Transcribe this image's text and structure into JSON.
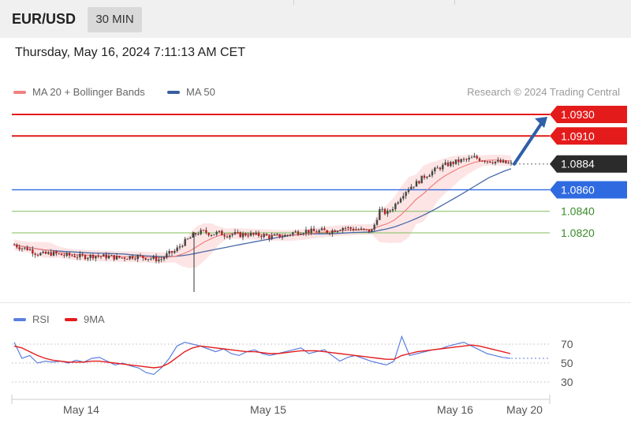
{
  "header": {
    "symbol": "EUR/USD",
    "timeframe": "30 MIN",
    "datetime": "Thursday, May 16, 2024 7:11:13 AM CET",
    "copyright": "Research © 2024 Trading Central"
  },
  "legend": {
    "ma20": "MA 20 + Bollinger Bands",
    "ma50": "MA 50"
  },
  "rsi_legend": {
    "rsi": "RSI",
    "ma9": "9MA"
  },
  "colors": {
    "resistance": "#e41b1b",
    "support": "#2f6ae0",
    "support_minor": "#7fbf5a",
    "current": "#2b2b2b",
    "ma20": "#f08080",
    "bollinger_fill": "#fde0e0",
    "ma50": "#4a6aa8",
    "rsi": "#5b7fe0",
    "rsi_ma": "#e41b1b",
    "arrow": "#2f5fa8",
    "candle": "#b52020"
  },
  "chart_data": [
    {
      "type": "candlestick",
      "title": "",
      "series_names": [
        "MA 20 + Bollinger Bands",
        "MA 50"
      ],
      "price_levels": [
        {
          "value": 1.093,
          "label": "1.0930",
          "kind": "resistance"
        },
        {
          "value": 1.091,
          "label": "1.0910",
          "kind": "resistance"
        },
        {
          "value": 1.0884,
          "label": "1.0884",
          "kind": "current"
        },
        {
          "value": 1.086,
          "label": "1.0860",
          "kind": "support"
        },
        {
          "value": 1.084,
          "label": "1.0840",
          "kind": "support_minor"
        },
        {
          "value": 1.082,
          "label": "1.0820",
          "kind": "support_minor"
        }
      ],
      "x_ticks": [
        "May 14",
        "May 15",
        "May 16",
        "May 20"
      ],
      "close_path": [
        1.0809,
        1.0806,
        1.0805,
        1.0801,
        1.08,
        1.0801,
        1.08,
        1.0799,
        1.0799,
        1.0798,
        1.0798,
        1.0799,
        1.0798,
        1.0798,
        1.0797,
        1.0797,
        1.0798,
        1.0798,
        1.0797,
        1.0796,
        1.0795,
        1.08,
        1.0803,
        1.081,
        1.0815,
        1.082,
        1.0821,
        1.0819,
        1.082,
        1.0818,
        1.0819,
        1.0818,
        1.0819,
        1.0818,
        1.0818,
        1.0816,
        1.0817,
        1.0817,
        1.082,
        1.0821,
        1.0822,
        1.0821,
        1.0822,
        1.0821,
        1.0823,
        1.0825,
        1.0824,
        1.0823,
        1.0822,
        1.0822,
        1.0841,
        1.0838,
        1.0845,
        1.0855,
        1.0862,
        1.0866,
        1.0872,
        1.0876,
        1.088,
        1.0883,
        1.0885,
        1.0887,
        1.0888,
        1.089,
        1.0888,
        1.0887,
        1.0886,
        1.0885,
        1.0884
      ],
      "forecast_arrow": {
        "from": 1.0884,
        "to": 1.093
      }
    },
    {
      "type": "line",
      "title": "",
      "series_names": [
        "RSI",
        "9MA"
      ],
      "y_ticks": [
        70,
        50,
        30
      ],
      "rsi": [
        72,
        55,
        58,
        50,
        52,
        51,
        52,
        50,
        53,
        51,
        55,
        56,
        52,
        48,
        50,
        47,
        45,
        40,
        38,
        45,
        55,
        68,
        72,
        70,
        68,
        65,
        62,
        65,
        60,
        58,
        62,
        64,
        60,
        58,
        60,
        62,
        64,
        66,
        60,
        62,
        64,
        58,
        52,
        56,
        58,
        55,
        52,
        50,
        48,
        52,
        78,
        58,
        60,
        62,
        64,
        65,
        68,
        70,
        72,
        68,
        64,
        60,
        58,
        56,
        55
      ],
      "rsi_ma": [
        68,
        66,
        62,
        58,
        55,
        53,
        52,
        51,
        51,
        51,
        52,
        52,
        51,
        50,
        49,
        48,
        47,
        46,
        45,
        46,
        50,
        56,
        62,
        66,
        68,
        67,
        66,
        65,
        64,
        63,
        62,
        62,
        61,
        60,
        60,
        61,
        62,
        63,
        63,
        63,
        62,
        61,
        60,
        59,
        58,
        57,
        56,
        55,
        54,
        54,
        58,
        60,
        62,
        63,
        64,
        65,
        66,
        67,
        68,
        69,
        68,
        66,
        64,
        62,
        60
      ]
    }
  ]
}
